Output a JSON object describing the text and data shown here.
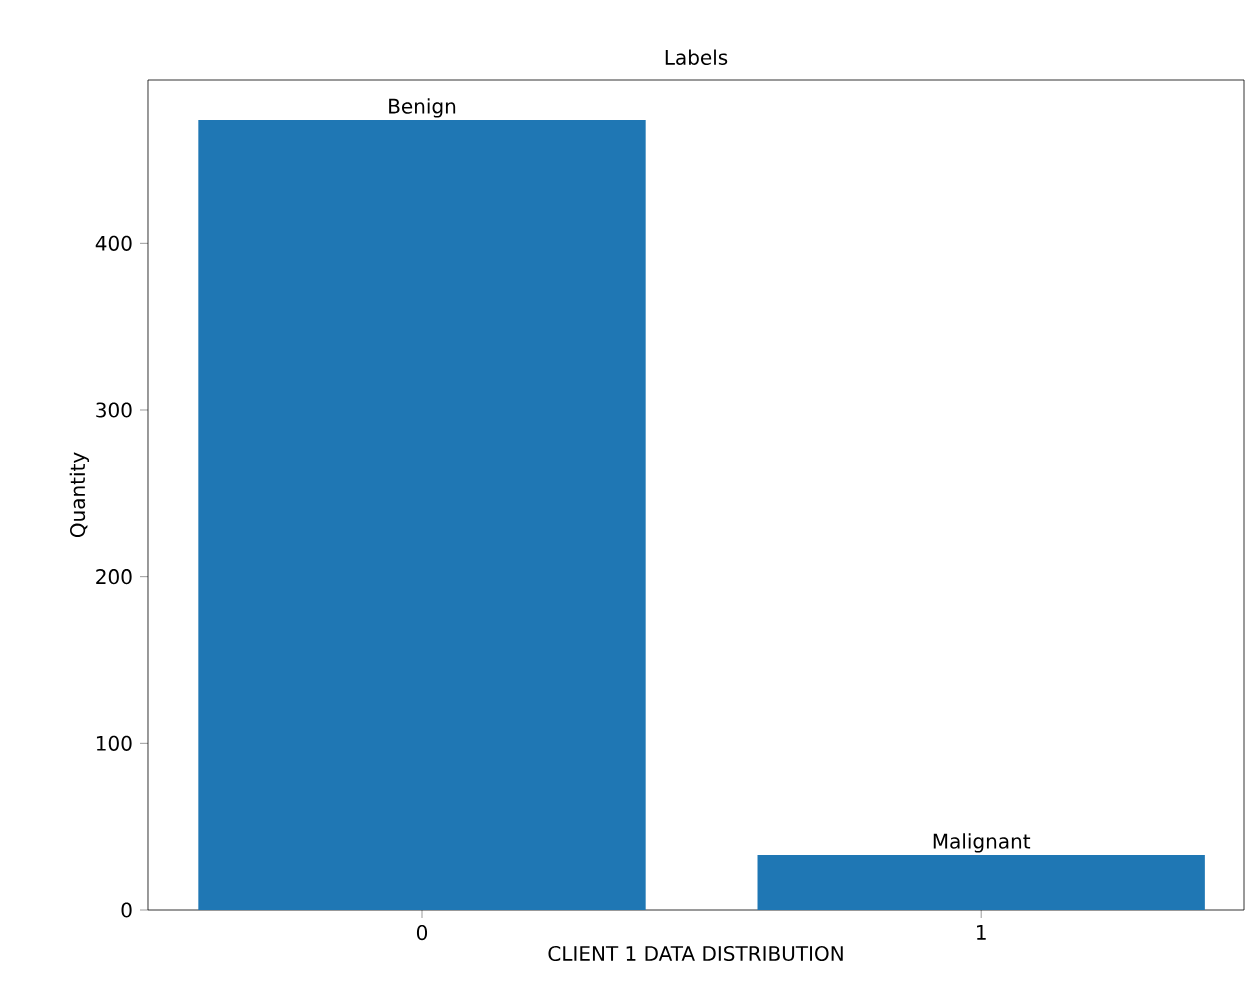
{
  "chart_data": {
    "type": "bar",
    "title": "Labels",
    "xlabel": "CLIENT 1 DATA DISTRIBUTION",
    "ylabel": "Quantity",
    "categories": [
      "0",
      "1"
    ],
    "values": [
      474,
      33
    ],
    "color": "#1f77b4",
    "ylim": [
      0,
      498
    ],
    "yticks": [
      0,
      100,
      200,
      300,
      400
    ],
    "annotations": [
      {
        "text": "Benign",
        "x": "0",
        "y": 474
      },
      {
        "text": "Malignant",
        "x": "1",
        "y": 33
      }
    ],
    "grid": false
  }
}
